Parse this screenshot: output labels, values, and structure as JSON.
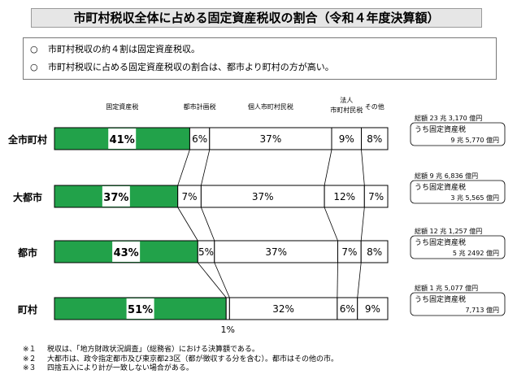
{
  "title": "市町村税収全体に占める固定資産税収の割合（令和４年度決算額）",
  "notes": [
    {
      "mark": "○",
      "text": "市町村税収の約４割は固定資産税収。"
    },
    {
      "mark": "○",
      "text": "市町村税収に占める固定資産税収の割合は、都市より町村の方が高い。"
    }
  ],
  "footnotes": [
    {
      "num": "※１",
      "text": "税収は、「地方財政状況調査」（総務省）における決算額である。"
    },
    {
      "num": "※２",
      "text": "大都市は、政令指定都市及び東京都23区（都が徴収する分を含む）。都市はその他の市。"
    },
    {
      "num": "※３",
      "text": "四捨五入により計が一致しない場合がある。"
    }
  ],
  "colors": {
    "fixed_asset": "#22a24a",
    "other": "#ffffff",
    "border": "#000000"
  },
  "chart_data": {
    "type": "bar",
    "orientation": "horizontal-stacked-100",
    "categories": [
      "全市町村",
      "大都市",
      "都市",
      "町村"
    ],
    "series": [
      {
        "name": "固定資産税",
        "values": [
          41,
          37,
          43,
          51
        ]
      },
      {
        "name": "都市計画税",
        "values": [
          6,
          7,
          5,
          1
        ]
      },
      {
        "name": "個人市町村民税",
        "values": [
          37,
          37,
          37,
          32
        ]
      },
      {
        "name": "法人市町村民税",
        "values": [
          9,
          12,
          7,
          6
        ]
      },
      {
        "name": "その他",
        "values": [
          8,
          7,
          8,
          9
        ]
      }
    ],
    "labels": [
      [
        "41%",
        "6%",
        "37%",
        "9%",
        "8%"
      ],
      [
        "37%",
        "7%",
        "37%",
        "12%",
        "7%"
      ],
      [
        "43%",
        "5%",
        "37%",
        "7%",
        "8%"
      ],
      [
        "51%",
        "1%",
        "32%",
        "6%",
        "9%"
      ]
    ],
    "summaries": [
      {
        "total": "総額 23 兆  3,170 億円",
        "sub_label": "うち固定資産税",
        "sub_value": "9 兆  5,770 億円"
      },
      {
        "total": "総額  9 兆  6,836 億円",
        "sub_label": "うち固定資産税",
        "sub_value": "3 兆  5,565 億円"
      },
      {
        "total": "総額 12 兆  1,257 億円",
        "sub_label": "うち固定資産税",
        "sub_value": "5 兆  2492 億円"
      },
      {
        "total": "総額  1 兆  5,077 億円",
        "sub_label": "うち固定資産税",
        "sub_value": "7,713 億円"
      }
    ]
  }
}
